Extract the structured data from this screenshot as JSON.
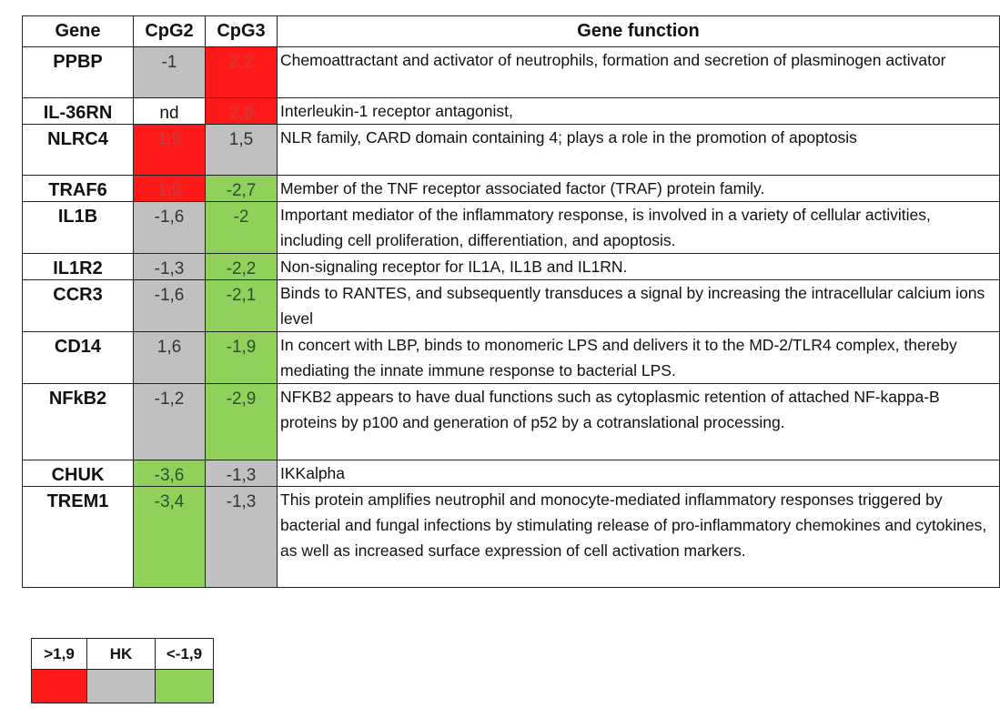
{
  "colors": {
    "red": "#ff1a1a",
    "gray": "#c0c0c0",
    "green": "#8fd15a"
  },
  "table": {
    "headers": {
      "gene": "Gene",
      "cpg2": "CpG2",
      "cpg3": "CpG3",
      "function": "Gene function"
    },
    "rows": [
      {
        "gene": "PPBP",
        "cpg2": "-1",
        "cpg2_color": "gray",
        "cpg3": "2,2",
        "cpg3_color": "red",
        "function": "Chemoattractant and activator of neutrophils, formation and secretion of plasminogen activator"
      },
      {
        "gene": "IL-36RN",
        "cpg2": "nd",
        "cpg2_color": "none",
        "cpg3": "2,9",
        "cpg3_color": "red",
        "function": "Interleukin-1 receptor antagonist,"
      },
      {
        "gene": "NLRC4",
        "cpg2": "1,9",
        "cpg2_color": "red",
        "cpg3": "1,5",
        "cpg3_color": "gray",
        "function": "NLR family, CARD domain containing 4; plays a role in the promotion of apoptosis"
      },
      {
        "gene": "TRAF6",
        "cpg2": "1,9",
        "cpg2_color": "red",
        "cpg3": "-2,7",
        "cpg3_color": "green",
        "function": "Member of the TNF receptor associated factor (TRAF) protein family."
      },
      {
        "gene": "IL1B",
        "cpg2": "-1,6",
        "cpg2_color": "gray",
        "cpg3": "-2",
        "cpg3_color": "green",
        "function": "Important mediator of the inflammatory response, is involved in a variety of cellular activities, including cell proliferation, differentiation, and apoptosis."
      },
      {
        "gene": "IL1R2",
        "cpg2": "-1,3",
        "cpg2_color": "gray",
        "cpg3": "-2,2",
        "cpg3_color": "green",
        "function": "Non-signaling receptor for IL1A, IL1B and IL1RN."
      },
      {
        "gene": "CCR3",
        "cpg2": "-1,6",
        "cpg2_color": "gray",
        "cpg3": "-2,1",
        "cpg3_color": "green",
        "function": "Binds to RANTES, and subsequently transduces a signal by increasing the intracellular calcium ions level"
      },
      {
        "gene": "CD14",
        "cpg2": "1,6",
        "cpg2_color": "gray",
        "cpg3": "-1,9",
        "cpg3_color": "green",
        "function": "In concert with LBP, binds to monomeric LPS and delivers it to the MD-2/TLR4 complex, thereby mediating the innate immune response to bacterial LPS."
      },
      {
        "gene": "NFkB2",
        "cpg2": "-1,2",
        "cpg2_color": "gray",
        "cpg3": "-2,9",
        "cpg3_color": "green",
        "function": "NFKB2 appears to have dual functions such as cytoplasmic retention of attached NF-kappa-B proteins by p100 and generation of p52 by a cotranslational processing."
      },
      {
        "gene": "CHUK",
        "cpg2": "-3,6",
        "cpg2_color": "green",
        "cpg3": "-1,3",
        "cpg3_color": "gray",
        "function": "IKKalpha"
      },
      {
        "gene": "TREM1",
        "cpg2": "-3,4",
        "cpg2_color": "green",
        "cpg3": "-1,3",
        "cpg3_color": "gray",
        "function": "This protein amplifies neutrophil and monocyte-mediated inflammatory responses triggered by bacterial and fungal infections by stimulating release of pro-inflammatory chemokines and cytokines, as well as increased surface expression of cell activation markers."
      }
    ]
  },
  "legend": {
    "items": [
      {
        "label": ">1,9",
        "color": "red"
      },
      {
        "label": "HK",
        "color": "gray"
      },
      {
        "label": "<-1,9",
        "color": "green"
      }
    ]
  }
}
